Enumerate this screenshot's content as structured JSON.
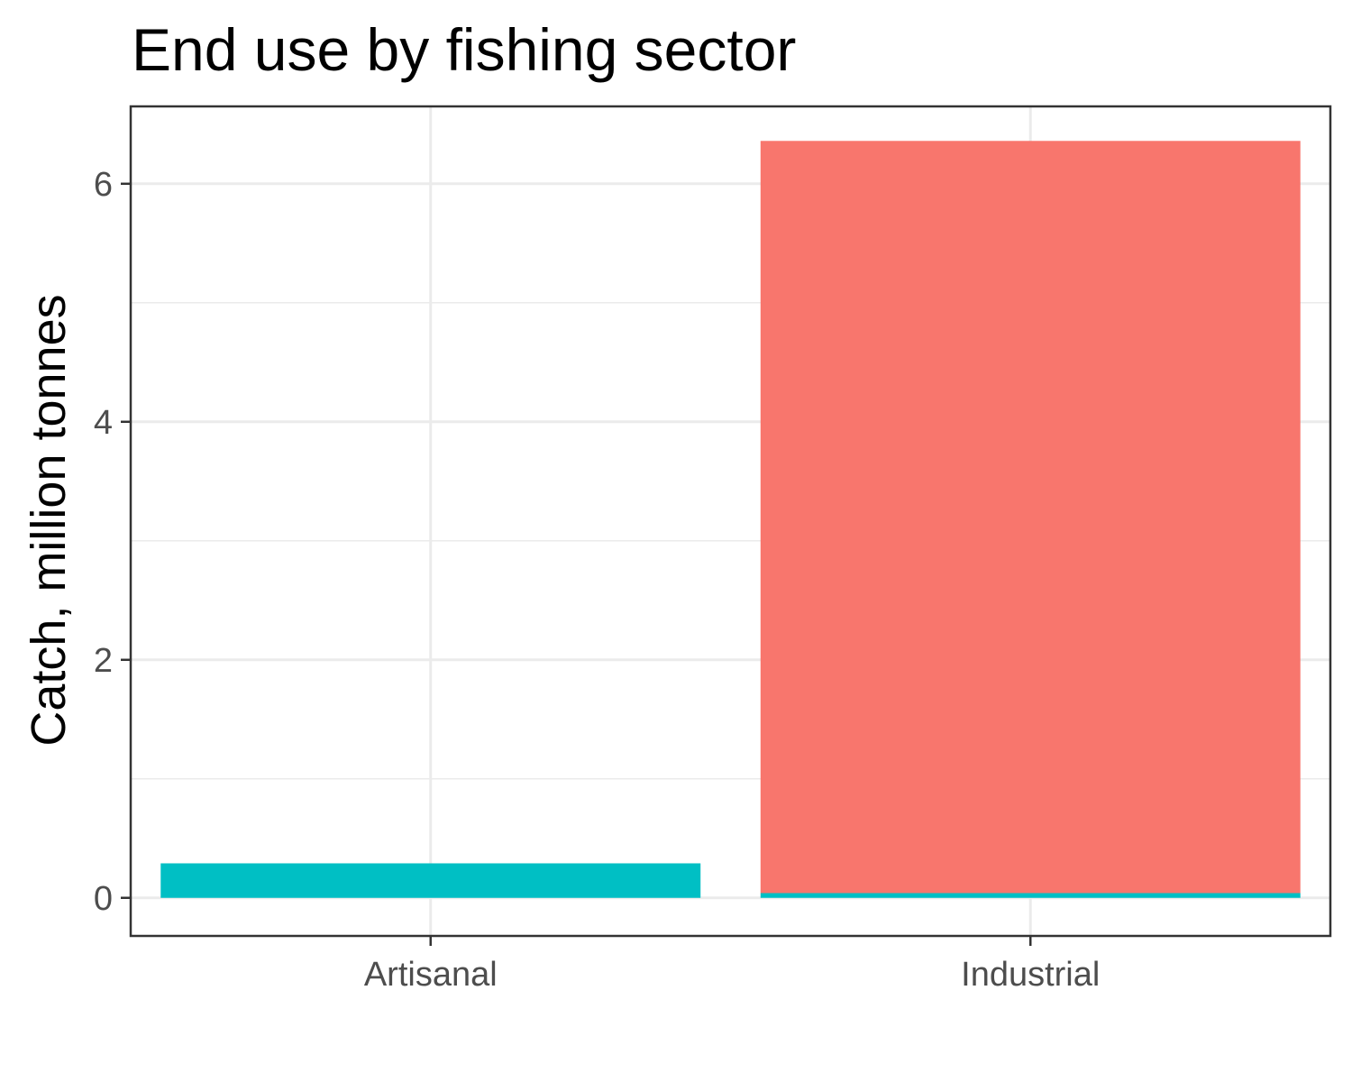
{
  "chart_data": {
    "type": "bar",
    "stacked": true,
    "title": "End use by fishing sector",
    "xlabel": "",
    "ylabel": "Catch, million tonnes",
    "categories": [
      "Artisanal",
      "Industrial"
    ],
    "series": [
      {
        "color": "#00bfc4",
        "values": [
          0.29,
          0.04
        ]
      },
      {
        "color": "#f8766d",
        "values": [
          0.0,
          6.32
        ]
      }
    ],
    "y_ticks": [
      0,
      2,
      4,
      6
    ],
    "y_tick_labels": [
      "0",
      "2",
      "4",
      "6"
    ],
    "ylim": [
      -0.32,
      6.65
    ],
    "grid": true,
    "legend": "none"
  }
}
